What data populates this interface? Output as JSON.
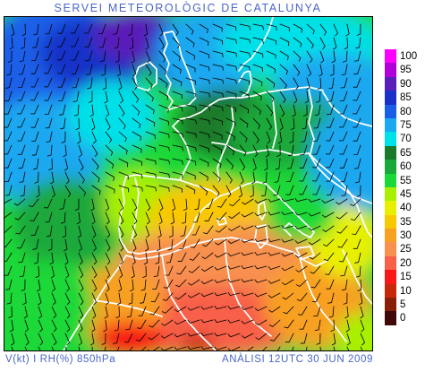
{
  "title": "SERVEI METEOROLÒGIC DE CATALUNYA",
  "footer": {
    "left": "V(kt) I RH(%) 850hPa",
    "right": "ANÀLISI 12UTC 30 JUN 2009"
  },
  "legend": {
    "items": [
      {
        "label": "100",
        "color": "#ff00ff"
      },
      {
        "label": "95",
        "color": "#b000d8"
      },
      {
        "label": "90",
        "color": "#5a1fb8"
      },
      {
        "label": "85",
        "color": "#1830c8"
      },
      {
        "label": "80",
        "color": "#1a5ee8"
      },
      {
        "label": "75",
        "color": "#1aa8f0"
      },
      {
        "label": "70",
        "color": "#00e0e8"
      },
      {
        "label": "65",
        "color": "#1a7a2a"
      },
      {
        "label": "60",
        "color": "#1aa83a"
      },
      {
        "label": "55",
        "color": "#1ad838"
      },
      {
        "label": "45",
        "color": "#a8f000"
      },
      {
        "label": "40",
        "color": "#e8f000"
      },
      {
        "label": "35",
        "color": "#f8c800"
      },
      {
        "label": "30",
        "color": "#f8a020"
      },
      {
        "label": "25",
        "color": "#f89050"
      },
      {
        "label": "20",
        "color": "#f86048"
      },
      {
        "label": "15",
        "color": "#f81818"
      },
      {
        "label": "10",
        "color": "#c82808"
      },
      {
        "label": "5",
        "color": "#882008"
      },
      {
        "label": "0",
        "color": "#400808"
      }
    ]
  }
}
